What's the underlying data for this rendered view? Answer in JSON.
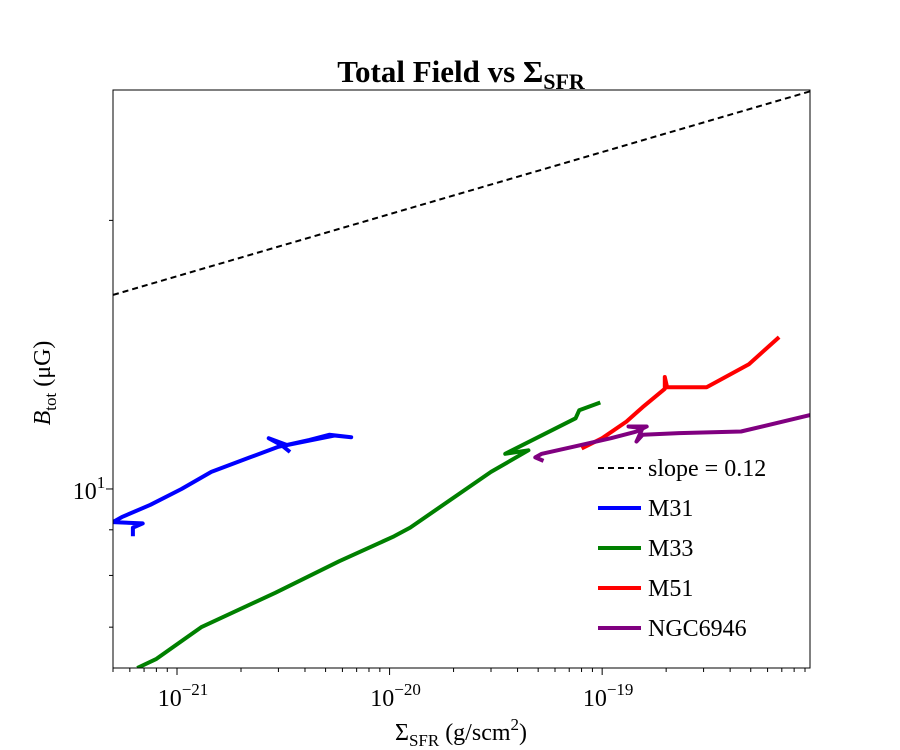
{
  "chart_data": {
    "type": "line",
    "title": "Total Field vs Σ",
    "title_sub": "SFR",
    "xlabel": {
      "main": "Σ",
      "sub": "SFR",
      "rest": " (g/scm",
      "sup": "2",
      "end": ")"
    },
    "ylabel": {
      "main": "B",
      "sub": "tot",
      "rest": " (μG)"
    },
    "xscale": "log",
    "yscale": "log",
    "xlim": [
      5e-22,
      9.5e-19
    ],
    "ylim": [
      6.3,
      28
    ],
    "grid": false,
    "legend_position": "lower-right",
    "x_ticks": [
      {
        "value": 1e-21,
        "base": "10",
        "exp": "−21"
      },
      {
        "value": 1e-20,
        "base": "10",
        "exp": "−20"
      },
      {
        "value": 1e-19,
        "base": "10",
        "exp": "−19"
      }
    ],
    "y_ticks": [
      {
        "value": 10,
        "base": "10",
        "exp": "1"
      }
    ],
    "reference_line": {
      "name": "slope = 0.12",
      "slope": 0.12,
      "x": [
        5e-22,
        9.5e-19
      ],
      "y": [
        16.5,
        27.9
      ],
      "color": "#000000",
      "dash": "6,4"
    },
    "series": [
      {
        "name": "M31",
        "color": "#0000ff",
        "x": [
          6.2e-22,
          6.2e-22,
          6.9e-22,
          5e-22,
          5.5e-22,
          7.5e-22,
          1.05e-21,
          1.45e-21,
          2.2e-21,
          3e-21,
          4.2e-21,
          5.2e-21,
          6.6e-21,
          5.5e-21,
          3.3e-21,
          2.7e-21,
          3.1e-21,
          3.4e-21
        ],
        "y": [
          8.85,
          9.05,
          9.15,
          9.18,
          9.3,
          9.6,
          10.0,
          10.45,
          10.85,
          11.15,
          11.35,
          11.5,
          11.43,
          11.48,
          11.2,
          11.4,
          11.2,
          11.0
        ]
      },
      {
        "name": "M33",
        "color": "#008000",
        "x": [
          6.5e-22,
          8e-22,
          1.3e-21,
          2.9e-21,
          5.8e-21,
          1.05e-20,
          1.25e-20,
          3e-20,
          4.5e-20,
          3.5e-20,
          7.5e-20,
          7.8e-20,
          9.8e-20
        ],
        "y": [
          6.3,
          6.45,
          7.0,
          7.65,
          8.3,
          8.85,
          9.05,
          10.45,
          11.05,
          10.95,
          12.0,
          12.25,
          12.5
        ]
      },
      {
        "name": "M51",
        "color": "#ff0000",
        "x": [
          8e-20,
          1e-19,
          1.3e-19,
          1.55e-19,
          1.97e-19,
          1.97e-19,
          2.02e-19,
          3.1e-19,
          4.9e-19,
          6.8e-19
        ],
        "y": [
          11.1,
          11.4,
          11.9,
          12.35,
          12.95,
          13.35,
          13.0,
          13.0,
          13.8,
          14.8
        ]
      },
      {
        "name": "NGC6946",
        "color": "#800080",
        "x": [
          5.3e-20,
          4.85e-20,
          5.2e-20,
          7.3e-20,
          1.1e-19,
          1.45e-19,
          1.62e-19,
          1.33e-19,
          1.55e-19,
          1.45e-19,
          1.55e-19,
          2.3e-19,
          4.5e-19,
          9.5e-19
        ],
        "y": [
          10.75,
          10.85,
          10.95,
          11.15,
          11.4,
          11.6,
          11.75,
          11.75,
          11.7,
          11.3,
          11.5,
          11.55,
          11.6,
          12.1
        ]
      }
    ]
  }
}
